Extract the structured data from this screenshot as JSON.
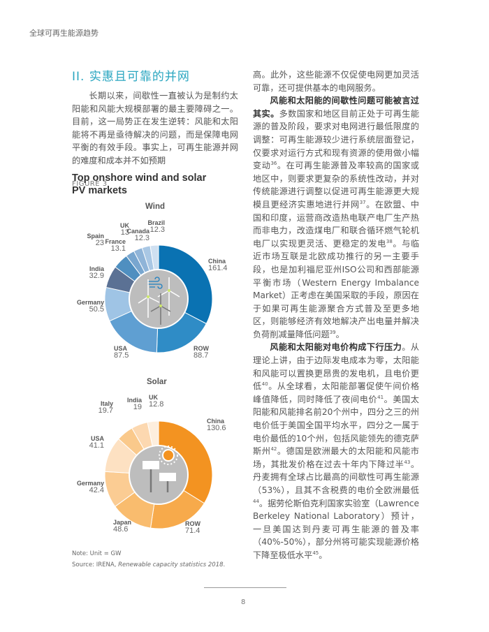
{
  "header": {
    "running_title": "全球可再生能源趋势"
  },
  "section": {
    "heading": "II. 实惠且可靠的并网"
  },
  "left_text": "长期以来，间歇性一直被认为是制约太阳能和风能大规模部署的最主要障碍之一。目前，这一局势正在发生逆转：风能和太阳能将不再是亟待解决的问题，而是保障电网平衡的有效手段。事实上，可再生能源并网的难度和成本并不如预期",
  "right": {
    "p1": "高。此外，这些能源不仅促使电网更加灵活可靠，还可提供基本的电网服务。",
    "p2_bold": "风能和太阳能的间歇性问题可能被言过其实。",
    "p2_a": "多数国家和地区目前正处于可再生能源的普及阶段，要求对电网进行最低限度的调整：可再生能源较少进行系统层面登记，仅要求对运行方式和现有资源的使用做小幅变动",
    "fn36": "36",
    "p2_b": "。在可再生能源普及率较高的国家或地区中，则要求更复杂的系统性改动，并对传统能源进行调整以促进可再生能源更大规模且更经济实惠地进行并网",
    "fn37": "37",
    "p2_c": "。在欧盟、中国和印度，运营商改造热电联产电厂生产热而非电力，改造煤电厂和联合循环燃气轮机电厂以实现更灵活、更稳定的发电",
    "fn38": "38",
    "p2_d": "。与临近市场互联是北欧成功推行的另一主要手段，也是加利福尼亚州ISO公司和西部能源平衡市场（Western Energy Imbalance Market）正考虑在美国采取的手段，原因在于如果可再生能源聚合方式普及至更多地区，则能够经济有效地解决产出电量并解决负荷削减量降低问题",
    "fn39": "39",
    "p2_e": "。",
    "p3_bold": "风能和太阳能对电价构成下行压力",
    "p3_a": "。从理论上讲，由于边际发电成本为零，太阳能和风能可以置换更昂贵的发电机，且电价更低",
    "fn40": "40",
    "p3_b": "。从全球看，太阳能部署促使午间价格峰值降低，同时降低了夜间电价",
    "fn41": "41",
    "p3_c": "。美国太阳能和风能排名前20个州中，四分之三的州电价低于美国全国平均水平，四分之一属于电价最低的10个州，包括风能领先的德克萨斯州",
    "fn42": "42",
    "p3_d": "。德国是欧洲最大的太阳能和风能市场，其批发价格在过去十年内下降过半",
    "fn43": "43",
    "p3_e": "。丹麦拥有全球占比最高的间歇性可再生能源（53%），且其不含税费的电价全欧洲最低",
    "fn44": "44",
    "p3_f": "。据劳伦斯伯克利国家实验室（Lawrence Berkeley National Laboratory）预计，一旦美国达到丹麦可再生能源的普及率（40%-50%），部分州将可能实现能源价格下降至极低水平",
    "fn45": "45",
    "p3_g": "。"
  },
  "figure": {
    "label": "FIGURE 3",
    "title_line1": "Top onshore wind and solar",
    "title_line2": "PV markets",
    "note": "Note: Unit = GW",
    "source_prefix": "Source: IRENA, ",
    "source_title": "Renewable capacity statistics 2018",
    "source_suffix": "."
  },
  "chart_data": [
    {
      "type": "pie",
      "title": "Wind",
      "unit": "GW",
      "categories": [
        "China",
        "ROW",
        "USA",
        "Germany",
        "India",
        "Spain",
        "France",
        "UK",
        "Canada",
        "Brazil"
      ],
      "values": [
        161.4,
        88.7,
        87.5,
        50.5,
        32.9,
        23,
        13.1,
        13,
        12.3,
        12.3
      ],
      "labels": [
        "161.4",
        "88.7",
        "87.5",
        "50.5",
        "32.9",
        "23",
        "13.1",
        "13",
        "12.3",
        "12.3"
      ],
      "colors": [
        "#0a72b2",
        "#2f8cc6",
        "#5f9fd2",
        "#9fc4e5",
        "#5b7194",
        "#4f8fc0",
        "#78a6cf",
        "#8fb4d8",
        "#a9c7e4",
        "#cfe0f1"
      ]
    },
    {
      "type": "pie",
      "title": "Solar",
      "unit": "GW",
      "categories": [
        "China",
        "ROW",
        "Japan",
        "Germany",
        "USA",
        "Italy",
        "India",
        "UK"
      ],
      "values": [
        130.6,
        71.4,
        48.6,
        42.4,
        41.1,
        19.7,
        19,
        12.8
      ],
      "labels": [
        "130.6",
        "71.4",
        "48.6",
        "42.4",
        "41.1",
        "19.7",
        "19",
        "12.8"
      ],
      "colors": [
        "#f39321",
        "#f7aa4b",
        "#f9bc6e",
        "#fbcc93",
        "#fde1c2",
        "#fac98b",
        "#fcd8b0",
        "#fdeedd"
      ]
    }
  ],
  "footer": {
    "page_number": "8"
  }
}
